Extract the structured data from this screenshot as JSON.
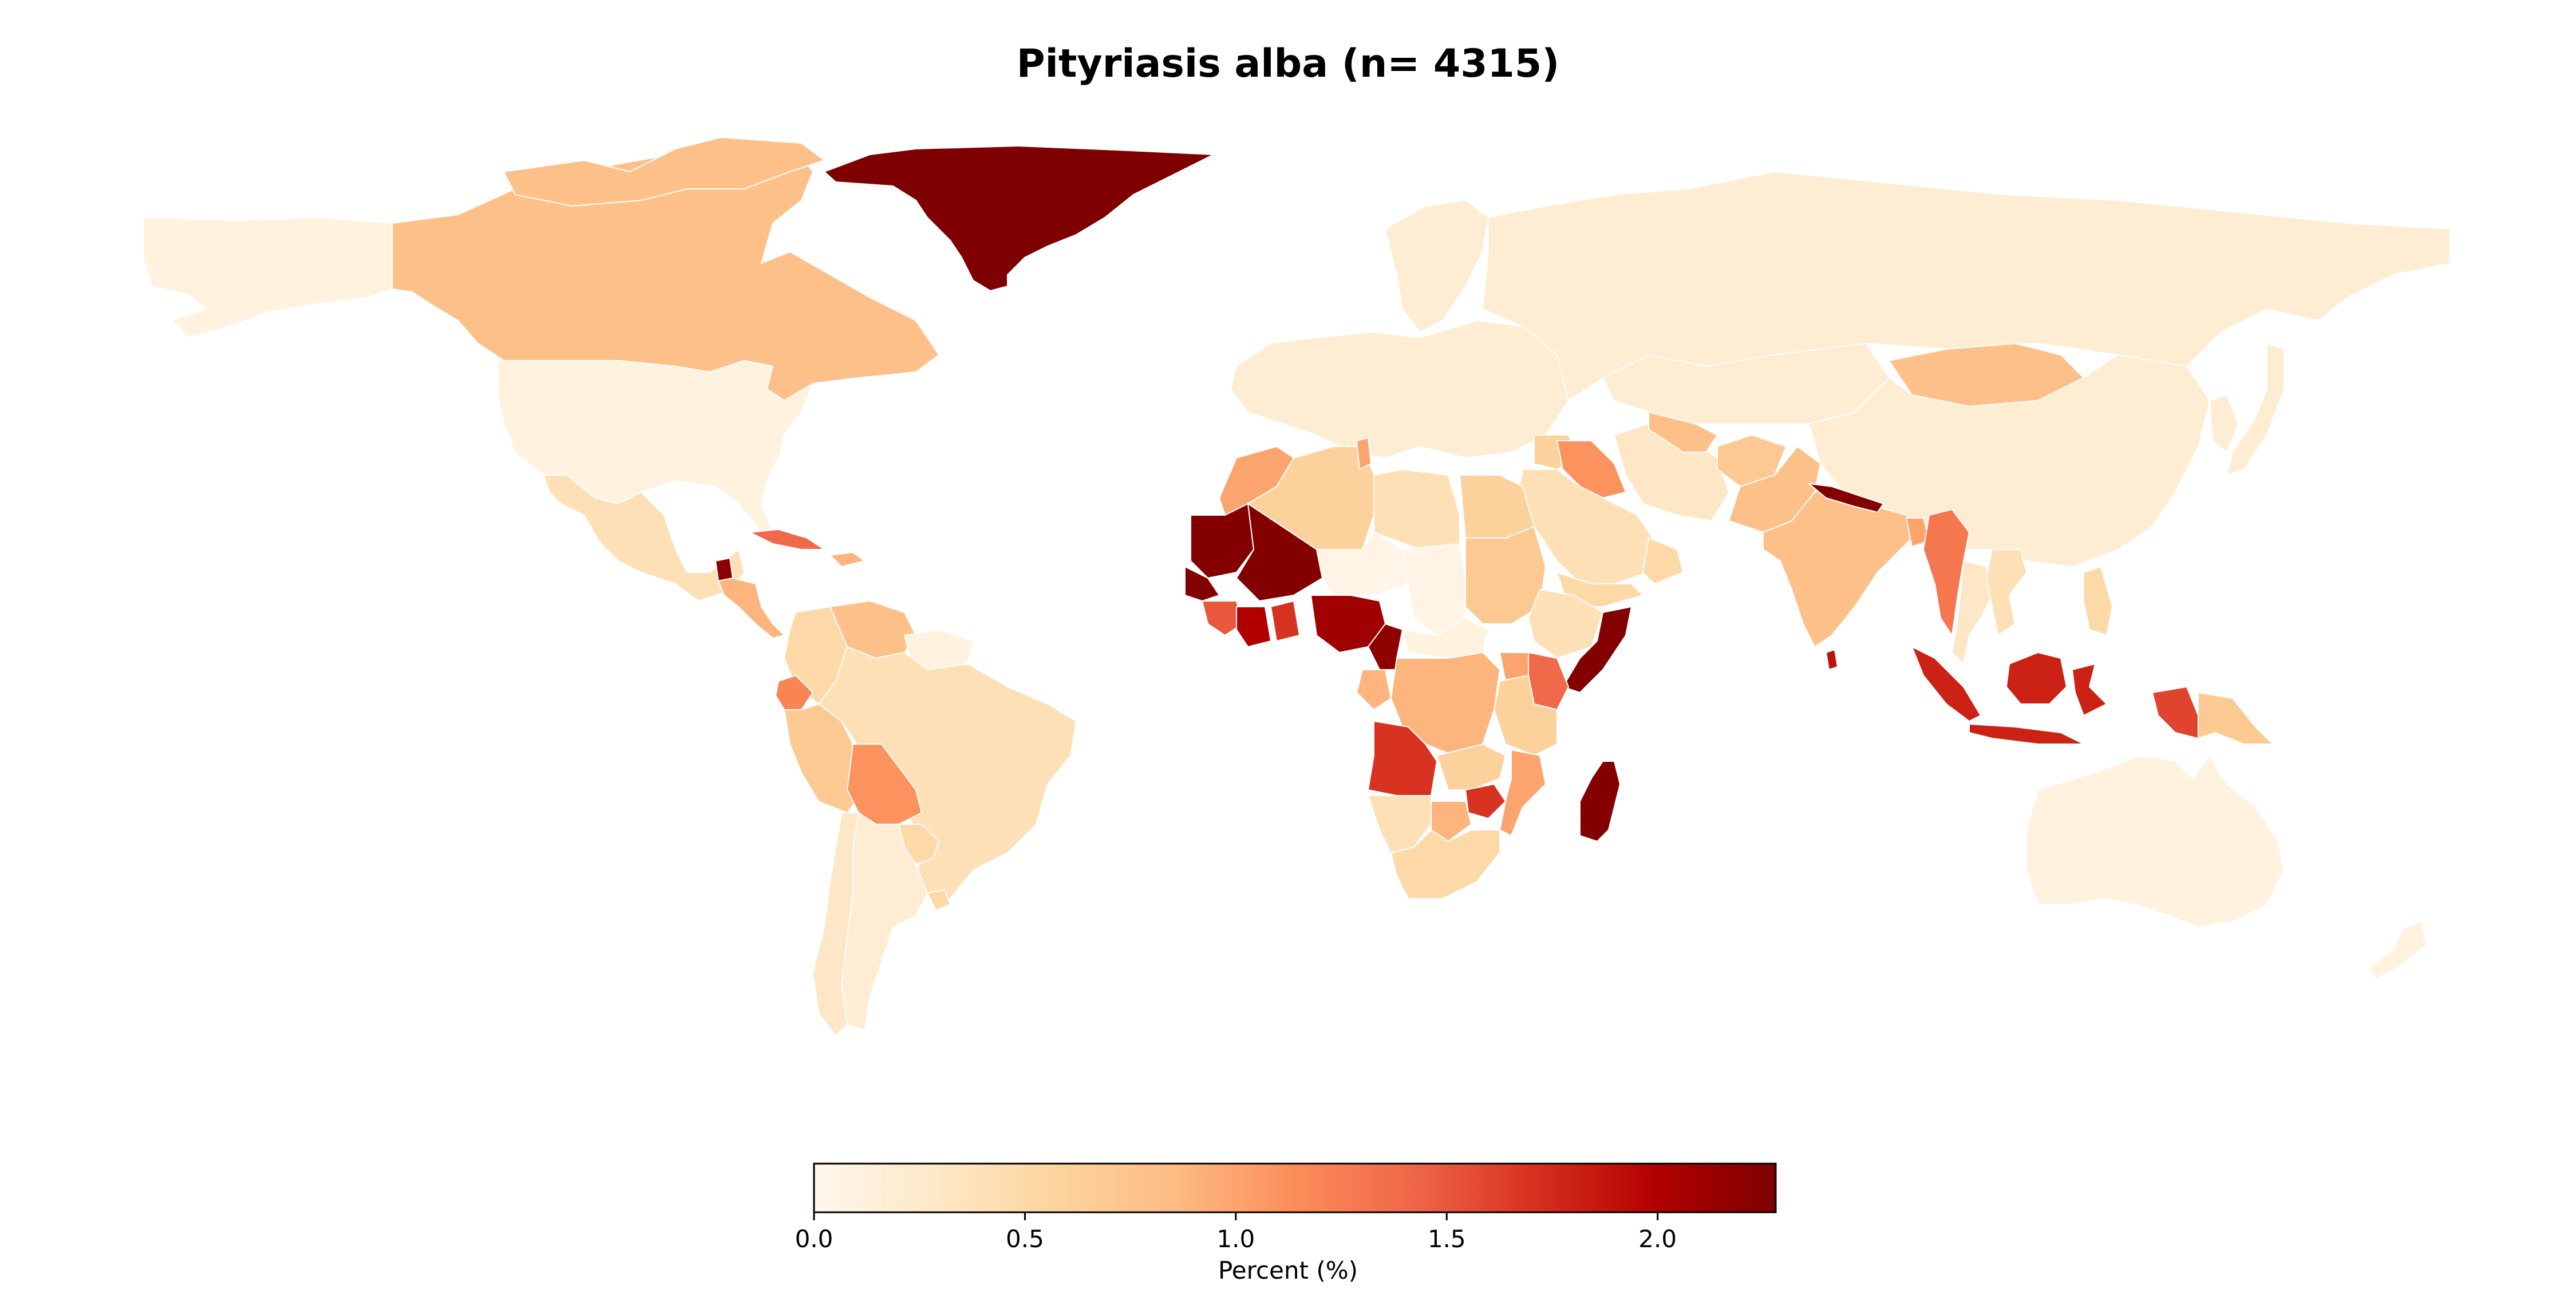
{
  "title": "Pityriasis alba (n= 4315)",
  "colormap": {
    "name": "OrRd",
    "stops": [
      "#fff7ec",
      "#fee8c8",
      "#fdd49e",
      "#fdbb84",
      "#fc8d59",
      "#ef6548",
      "#d7301f",
      "#b30000",
      "#7f0000"
    ]
  },
  "colorbar": {
    "label": "Percent (%)",
    "min": 0.0,
    "max": 2.28,
    "ticks": [
      "0.0",
      "0.5",
      "1.0",
      "1.5",
      "2.0"
    ]
  },
  "map_data": [
    {
      "region": "Canada",
      "value": 0.8
    },
    {
      "region": "United States",
      "value": 0.1
    },
    {
      "region": "Alaska",
      "value": 0.1
    },
    {
      "region": "Greenland",
      "value": 2.28
    },
    {
      "region": "Mexico",
      "value": 0.4
    },
    {
      "region": "Guatemala",
      "value": 2.2
    },
    {
      "region": "Central America",
      "value": 0.9
    },
    {
      "region": "Cuba",
      "value": 1.4
    },
    {
      "region": "Caribbean",
      "value": 0.9
    },
    {
      "region": "Venezuela",
      "value": 0.8
    },
    {
      "region": "Colombia",
      "value": 0.5
    },
    {
      "region": "Guianas",
      "value": 0.1
    },
    {
      "region": "Ecuador",
      "value": 1.2
    },
    {
      "region": "Peru",
      "value": 0.7
    },
    {
      "region": "Brazil",
      "value": 0.4
    },
    {
      "region": "Bolivia",
      "value": 1.1
    },
    {
      "region": "Paraguay",
      "value": 0.5
    },
    {
      "region": "Uruguay",
      "value": 0.5
    },
    {
      "region": "Chile",
      "value": 0.3
    },
    {
      "region": "Argentina",
      "value": 0.2
    },
    {
      "region": "Russia",
      "value": 0.2
    },
    {
      "region": "Europe",
      "value": 0.2
    },
    {
      "region": "Scandinavia",
      "value": 0.2
    },
    {
      "region": "Morocco",
      "value": 1.0
    },
    {
      "region": "Algeria",
      "value": 0.6
    },
    {
      "region": "Tunisia",
      "value": 1.0
    },
    {
      "region": "Libya",
      "value": 0.4
    },
    {
      "region": "Egypt",
      "value": 0.6
    },
    {
      "region": "Mauritania",
      "value": 2.25
    },
    {
      "region": "Mali",
      "value": 2.25
    },
    {
      "region": "Senegal",
      "value": 2.25
    },
    {
      "region": "Niger",
      "value": 0.05
    },
    {
      "region": "Chad",
      "value": 0.05
    },
    {
      "region": "Sudan",
      "value": 0.7
    },
    {
      "region": "Ethiopia",
      "value": 0.4
    },
    {
      "region": "Somalia",
      "value": 2.25
    },
    {
      "region": "Guinea",
      "value": 1.5
    },
    {
      "region": "Cote d'Ivoire",
      "value": 2.0
    },
    {
      "region": "Ghana",
      "value": 1.7
    },
    {
      "region": "Nigeria",
      "value": 2.1
    },
    {
      "region": "Cameroon",
      "value": 2.2
    },
    {
      "region": "Central African Republic",
      "value": 0.1
    },
    {
      "region": "Gabon",
      "value": 0.9
    },
    {
      "region": "DR Congo",
      "value": 0.9
    },
    {
      "region": "Uganda",
      "value": 1.0
    },
    {
      "region": "Kenya",
      "value": 1.4
    },
    {
      "region": "Tanzania",
      "value": 0.6
    },
    {
      "region": "Angola",
      "value": 1.7
    },
    {
      "region": "Zambia",
      "value": 0.6
    },
    {
      "region": "Zimbabwe",
      "value": 1.7
    },
    {
      "region": "Mozambique",
      "value": 1.0
    },
    {
      "region": "Namibia",
      "value": 0.4
    },
    {
      "region": "Botswana",
      "value": 0.9
    },
    {
      "region": "South Africa",
      "value": 0.5
    },
    {
      "region": "Madagascar",
      "value": 2.25
    },
    {
      "region": "Saudi Arabia",
      "value": 0.4
    },
    {
      "region": "Yemen",
      "value": 0.5
    },
    {
      "region": "Oman",
      "value": 0.5
    },
    {
      "region": "Iraq",
      "value": 1.1
    },
    {
      "region": "Syria",
      "value": 0.6
    },
    {
      "region": "Iran",
      "value": 0.3
    },
    {
      "region": "Turkmenistan",
      "value": 0.8
    },
    {
      "region": "Afghanistan",
      "value": 0.7
    },
    {
      "region": "Pakistan",
      "value": 0.8
    },
    {
      "region": "India",
      "value": 0.8
    },
    {
      "region": "Nepal",
      "value": 2.25
    },
    {
      "region": "Bangladesh",
      "value": 1.0
    },
    {
      "region": "Myanmar",
      "value": 1.3
    },
    {
      "region": "Sri Lanka",
      "value": 1.9
    },
    {
      "region": "Thailand",
      "value": 0.3
    },
    {
      "region": "Vietnam",
      "value": 0.4
    },
    {
      "region": "Philippines",
      "value": 0.5
    },
    {
      "region": "Indonesia (Sumatra)",
      "value": 1.8
    },
    {
      "region": "Indonesia (Java)",
      "value": 1.8
    },
    {
      "region": "Indonesia (Borneo)",
      "value": 1.8
    },
    {
      "region": "Indonesia (Sulawesi)",
      "value": 1.8
    },
    {
      "region": "Indonesia (Papua)",
      "value": 1.6
    },
    {
      "region": "Papua New Guinea",
      "value": 0.7
    },
    {
      "region": "Mongolia",
      "value": 0.8
    },
    {
      "region": "Kazakhstan",
      "value": 0.2
    },
    {
      "region": "China",
      "value": 0.2
    },
    {
      "region": "Korea",
      "value": 0.2
    },
    {
      "region": "Japan",
      "value": 0.2
    },
    {
      "region": "Australia",
      "value": 0.1
    },
    {
      "region": "New Zealand",
      "value": 0.1
    }
  ]
}
